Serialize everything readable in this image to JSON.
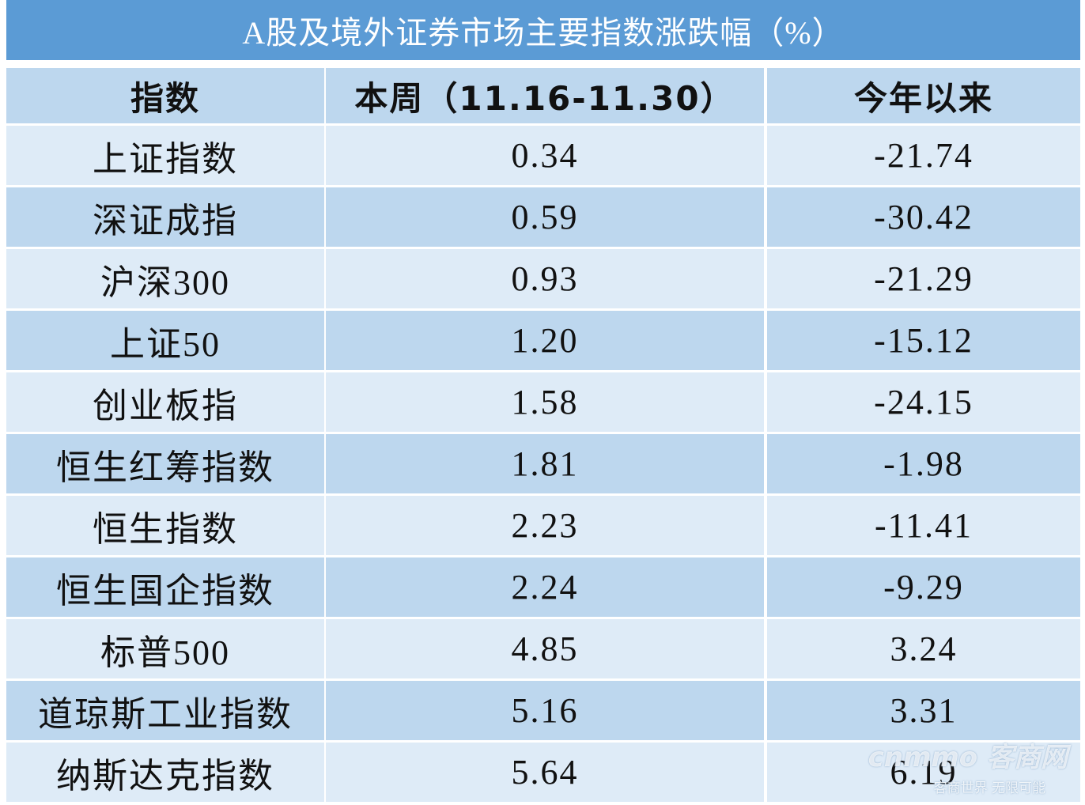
{
  "header": {
    "title": "A股及境外证券市场主要指数涨跌幅（%）"
  },
  "table": {
    "columns": [
      "指数",
      "本周（11.16-11.30）",
      "今年以来"
    ],
    "rows": [
      [
        "上证指数",
        "0.34",
        "-21.74"
      ],
      [
        "深证成指",
        "0.59",
        "-30.42"
      ],
      [
        "沪深300",
        "0.93",
        "-21.29"
      ],
      [
        "上证50",
        "1.20",
        "-15.12"
      ],
      [
        "创业板指",
        "1.58",
        "-24.15"
      ],
      [
        "恒生红筹指数",
        "1.81",
        "-1.98"
      ],
      [
        "恒生指数",
        "2.23",
        "-11.41"
      ],
      [
        "恒生国企指数",
        "2.24",
        "-9.29"
      ],
      [
        "标普500",
        "4.85",
        "3.24"
      ],
      [
        "道琼斯工业指数",
        "5.16",
        "3.31"
      ],
      [
        "纳斯达克指数",
        "5.64",
        "6.19"
      ]
    ]
  },
  "watermark": {
    "logo": "cnmmo 客商网",
    "slogan": "客商世界 无限可能"
  }
}
